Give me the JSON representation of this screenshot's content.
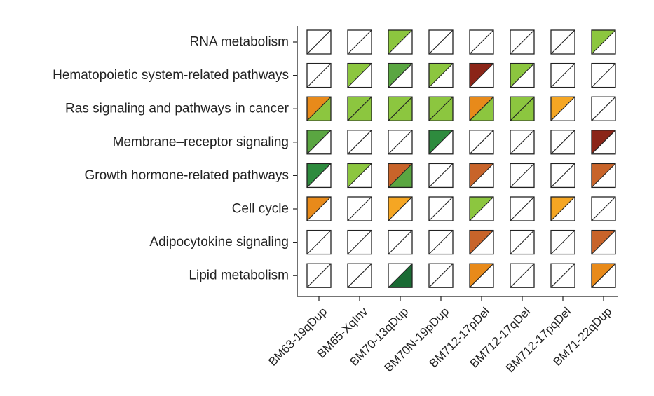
{
  "chart_data": {
    "type": "heatmap",
    "title": "",
    "xlabel": "",
    "ylabel": "",
    "rows": [
      "RNA metabolism",
      "Hematopoietic system-related pathways",
      "Ras signaling and pathways in cancer",
      "Membrane–receptor signaling",
      "Growth hormone-related pathways",
      "Cell cycle",
      "Adipocytokine signaling",
      "Lipid metabolism"
    ],
    "columns": [
      "BM63-19qDup",
      "BM65-XqInv",
      "BM70-13qDup",
      "BM70N-19pDup",
      "BM712-17pDel",
      "BM712-17qDel",
      "BM712-17pqDel",
      "BM71-22qDup"
    ],
    "colors": {
      "none": "#ffffff",
      "light_green": "#8cc63f",
      "mid_green": "#5aa641",
      "dark_green": "#2e8b3e",
      "darkest_green": "#1a6b34",
      "orange": "#f5a623",
      "dark_orange": "#e88a1a",
      "rust": "#c8642a",
      "dark_red": "#8b2518",
      "border": "#222222"
    },
    "cells": [
      [
        [
          "none",
          "none"
        ],
        [
          "none",
          "none"
        ],
        [
          "light_green",
          "none"
        ],
        [
          "none",
          "none"
        ],
        [
          "none",
          "none"
        ],
        [
          "none",
          "none"
        ],
        [
          "none",
          "none"
        ],
        [
          "light_green",
          "none"
        ]
      ],
      [
        [
          "none",
          "none"
        ],
        [
          "light_green",
          "none"
        ],
        [
          "mid_green",
          "none"
        ],
        [
          "light_green",
          "none"
        ],
        [
          "dark_red",
          "none"
        ],
        [
          "light_green",
          "none"
        ],
        [
          "none",
          "none"
        ],
        [
          "none",
          "none"
        ]
      ],
      [
        [
          "dark_orange",
          "light_green"
        ],
        [
          "light_green",
          "light_green"
        ],
        [
          "light_green",
          "light_green"
        ],
        [
          "light_green",
          "light_green"
        ],
        [
          "dark_orange",
          "light_green"
        ],
        [
          "light_green",
          "light_green"
        ],
        [
          "orange",
          "none"
        ],
        [
          "none",
          "none"
        ]
      ],
      [
        [
          "mid_green",
          "none"
        ],
        [
          "none",
          "none"
        ],
        [
          "none",
          "none"
        ],
        [
          "dark_green",
          "none"
        ],
        [
          "none",
          "none"
        ],
        [
          "none",
          "none"
        ],
        [
          "none",
          "none"
        ],
        [
          "dark_red",
          "none"
        ]
      ],
      [
        [
          "dark_green",
          "none"
        ],
        [
          "light_green",
          "none"
        ],
        [
          "rust",
          "mid_green"
        ],
        [
          "none",
          "none"
        ],
        [
          "rust",
          "none"
        ],
        [
          "none",
          "none"
        ],
        [
          "none",
          "none"
        ],
        [
          "rust",
          "none"
        ]
      ],
      [
        [
          "dark_orange",
          "none"
        ],
        [
          "none",
          "none"
        ],
        [
          "orange",
          "none"
        ],
        [
          "none",
          "none"
        ],
        [
          "light_green",
          "none"
        ],
        [
          "none",
          "none"
        ],
        [
          "orange",
          "none"
        ],
        [
          "none",
          "none"
        ]
      ],
      [
        [
          "none",
          "none"
        ],
        [
          "none",
          "none"
        ],
        [
          "none",
          "none"
        ],
        [
          "none",
          "none"
        ],
        [
          "rust",
          "none"
        ],
        [
          "none",
          "none"
        ],
        [
          "none",
          "none"
        ],
        [
          "rust",
          "none"
        ]
      ],
      [
        [
          "none",
          "none"
        ],
        [
          "none",
          "none"
        ],
        [
          "none",
          "darkest_green"
        ],
        [
          "none",
          "none"
        ],
        [
          "dark_orange",
          "none"
        ],
        [
          "none",
          "none"
        ],
        [
          "none",
          "none"
        ],
        [
          "dark_orange",
          "none"
        ]
      ]
    ]
  }
}
